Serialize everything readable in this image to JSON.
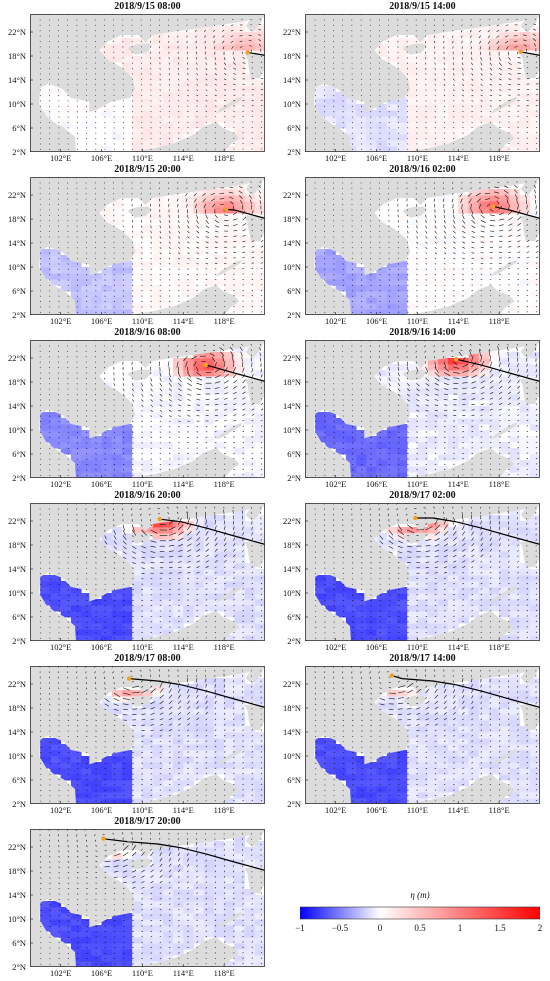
{
  "panels": [
    {
      "title": "2018/9/15 08:00"
    },
    {
      "title": "2018/9/15 14:00"
    },
    {
      "title": "2018/9/15 20:00"
    },
    {
      "title": "2018/9/16 02:00"
    },
    {
      "title": "2018/9/16 08:00"
    },
    {
      "title": "2018/9/16 14:00"
    },
    {
      "title": "2018/9/16 20:00"
    },
    {
      "title": "2018/9/17 02:00"
    },
    {
      "title": "2018/9/17 08:00"
    },
    {
      "title": "2018/9/17 14:00"
    },
    {
      "title": "2018/9/17 20:00"
    }
  ],
  "map": {
    "lat_ticks": [
      "22°N",
      "18°N",
      "14°N",
      "10°N",
      "6°N",
      "2°N"
    ],
    "lon_ticks": [
      "102°E",
      "106°E",
      "110°E",
      "114°E",
      "118°E"
    ],
    "lon_range": [
      99,
      122
    ],
    "lat_range": [
      2,
      25
    ],
    "land_color": "#dcdcdc",
    "ocean_color": "#ffffff"
  },
  "colorbar": {
    "label": "η (m)",
    "ticks": [
      "−1",
      "−0.5",
      "0",
      "0.5",
      "1",
      "1.5",
      "2"
    ],
    "range": [
      -1,
      2
    ],
    "colors": [
      "#0000ff",
      "#ffffff",
      "#ff0000"
    ]
  }
}
